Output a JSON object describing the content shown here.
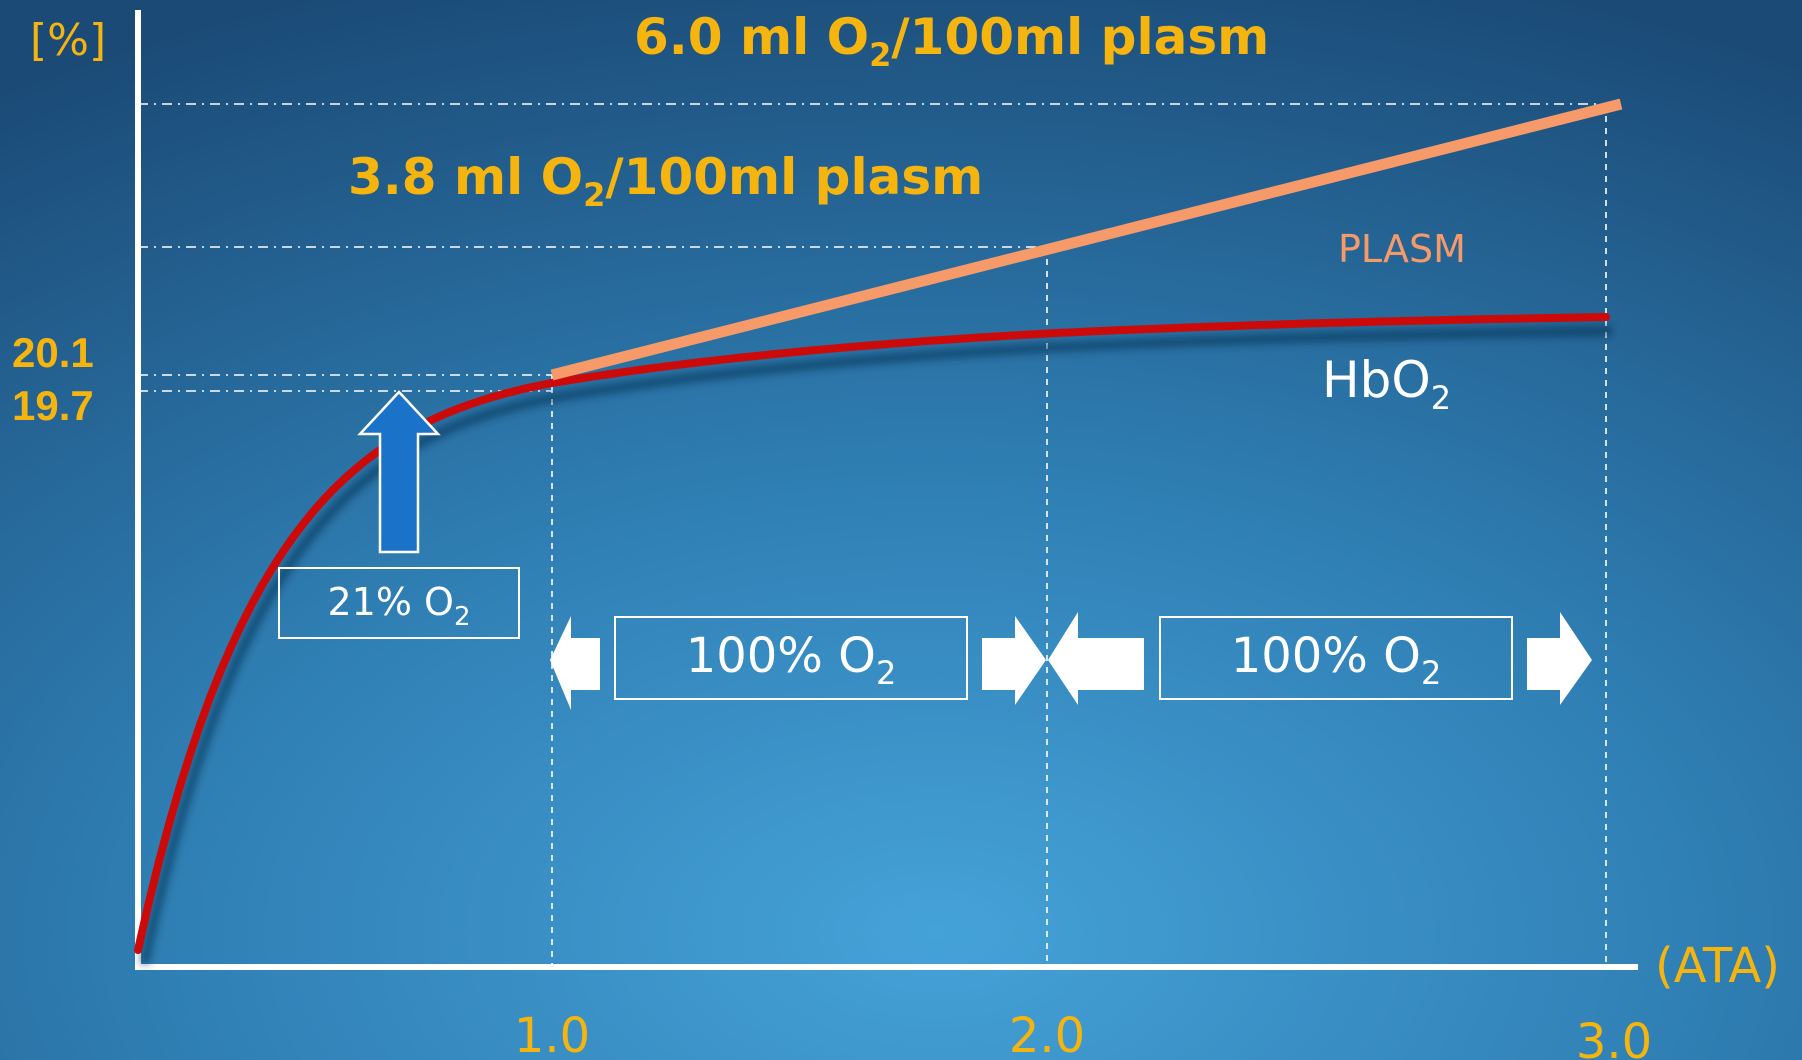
{
  "chart_data": {
    "type": "line",
    "y_unit_label": "[%]",
    "x_unit_label": "(ATA)",
    "x_ticks": [
      "1.0",
      "2.0",
      "3.0"
    ],
    "y_ticks": [
      "20.1",
      "19.7"
    ],
    "series": [
      {
        "name": "PLASM",
        "color": "#f79a6a",
        "points": [
          [
            1.0,
            20.1
          ],
          [
            2.0,
            3.8
          ],
          [
            3.0,
            6.0
          ]
        ]
      },
      {
        "name": "HbO",
        "name_sub": "2",
        "color": "#cc0a0a",
        "points": [
          [
            0.0,
            0.0
          ],
          [
            1.0,
            20.1
          ],
          [
            2.0,
            20.6
          ],
          [
            3.0,
            20.9
          ]
        ]
      }
    ],
    "annotations": {
      "top": {
        "pre": "6.0 ml O",
        "sub": "2",
        "post": "/100ml plasm"
      },
      "mid": {
        "pre": "3.8 ml O",
        "sub": "2",
        "post": "/100ml plasm"
      },
      "air_box": {
        "pre": "21% O",
        "sub": "2"
      },
      "oxygen_box_1": {
        "pre": "100% O",
        "sub": "2"
      },
      "oxygen_box_2": {
        "pre": "100% O",
        "sub": "2"
      }
    },
    "colors": {
      "annotation_text": "#f5b50e",
      "axis": "#ffffff",
      "arrow_blue": "#1a73c9"
    }
  }
}
